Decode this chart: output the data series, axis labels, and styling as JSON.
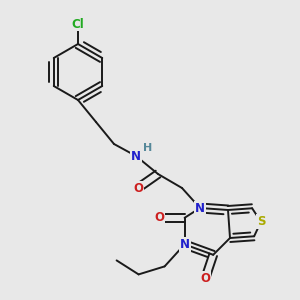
{
  "background_color": "#e8e8e8",
  "figsize": [
    3.0,
    3.0
  ],
  "dpi": 100,
  "bond_color": "#1a1a1a",
  "bond_lw": 1.4,
  "atom_bg": "#e8e8e8",
  "colors": {
    "C": "#1a1a1a",
    "N": "#2020cc",
    "O": "#cc2020",
    "S": "#aaaa00",
    "Cl": "#22aa22",
    "H": "#558899"
  },
  "fontsize": 8.5
}
